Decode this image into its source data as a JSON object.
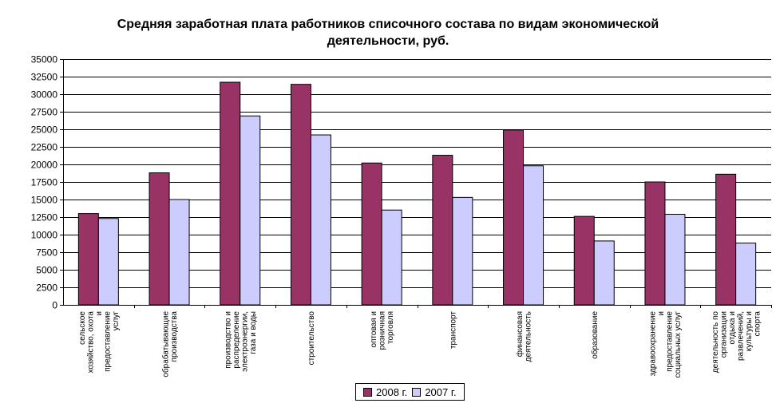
{
  "title_line1": "Средняя заработная плата работников списочного состава по видам экономической",
  "title_line2": "деятельности, руб.",
  "chart_data": {
    "type": "bar",
    "title": "Средняя заработная плата работников списочного состава по видам экономической деятельности, руб.",
    "xlabel": "",
    "ylabel": "",
    "ylim": [
      0,
      35000
    ],
    "ytick_step": 2500,
    "grid": true,
    "legend_position": "bottom",
    "categories": [
      [
        "сельское",
        "хозяйство, охота",
        "и",
        "предоставление",
        "услуг"
      ],
      [
        "обрабатывающие",
        "производства"
      ],
      [
        "производство и",
        "распределение",
        "электроэнергии,",
        "газа и воды"
      ],
      [
        "строительство"
      ],
      [
        "оптовая и",
        "розничная",
        "торговля"
      ],
      [
        "транспорт"
      ],
      [
        "финансовая",
        "деятельность"
      ],
      [
        "образование"
      ],
      [
        "здравоохранение",
        "и",
        "предоставление",
        "социальных услуг"
      ],
      [
        "деятельность по",
        "организации",
        "отдыха и",
        "развлечений,",
        "культуры и",
        "спорта"
      ]
    ],
    "series": [
      {
        "name": "2008 г.",
        "color": "#993366",
        "values": [
          13000,
          18800,
          31700,
          31400,
          20200,
          21300,
          24900,
          12600,
          17500,
          18600
        ]
      },
      {
        "name": "2007 г.",
        "color": "#ccccff",
        "values": [
          12300,
          15000,
          26900,
          24200,
          13500,
          15300,
          19800,
          9100,
          12900,
          8800
        ]
      }
    ]
  }
}
